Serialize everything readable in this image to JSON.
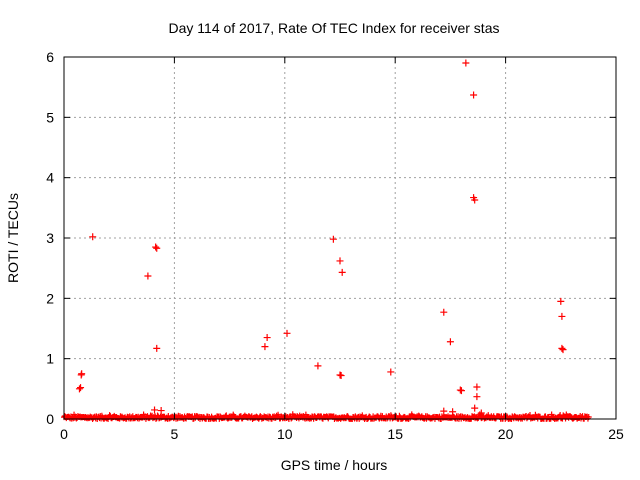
{
  "chart_data": {
    "type": "scatter",
    "title": "Day 114 of 2017, Rate Of TEC Index for receiver stas",
    "xlabel": "GPS time / hours",
    "ylabel": "ROTI / TECUs",
    "xlim": [
      0,
      25
    ],
    "ylim": [
      0,
      6
    ],
    "x_ticks": [
      "0",
      "5",
      "10",
      "15",
      "20",
      "25"
    ],
    "y_ticks": [
      "0",
      "1",
      "2",
      "3",
      "4",
      "5",
      "6"
    ],
    "grid": true,
    "marker": "plus",
    "color": "#ff0000",
    "points": [
      [
        0.7,
        0.5
      ],
      [
        0.75,
        0.52
      ],
      [
        0.8,
        0.75
      ],
      [
        0.78,
        0.73
      ],
      [
        1.3,
        3.02
      ],
      [
        3.8,
        2.37
      ],
      [
        4.15,
        2.85
      ],
      [
        4.2,
        2.83
      ],
      [
        4.2,
        1.17
      ],
      [
        9.1,
        1.2
      ],
      [
        9.2,
        1.35
      ],
      [
        10.1,
        1.42
      ],
      [
        11.5,
        0.88
      ],
      [
        12.2,
        2.98
      ],
      [
        12.5,
        2.62
      ],
      [
        12.6,
        2.43
      ],
      [
        12.5,
        0.73
      ],
      [
        12.55,
        0.72
      ],
      [
        14.8,
        0.78
      ],
      [
        17.2,
        1.77
      ],
      [
        17.5,
        1.28
      ],
      [
        18.0,
        0.47
      ],
      [
        17.95,
        0.48
      ],
      [
        18.2,
        5.9
      ],
      [
        18.55,
        5.37
      ],
      [
        18.55,
        3.67
      ],
      [
        18.6,
        3.63
      ],
      [
        18.7,
        0.53
      ],
      [
        18.7,
        0.37
      ],
      [
        22.5,
        1.95
      ],
      [
        22.55,
        1.7
      ],
      [
        22.55,
        1.17
      ],
      [
        22.6,
        1.15
      ],
      [
        4.1,
        0.15
      ],
      [
        4.4,
        0.14
      ],
      [
        17.2,
        0.13
      ],
      [
        17.6,
        0.12
      ],
      [
        18.6,
        0.18
      ],
      [
        18.9,
        0.1
      ]
    ],
    "baseline_band": {
      "x_start": 0,
      "x_end": 23.8,
      "y_min": 0,
      "y_max": 0.08
    }
  }
}
